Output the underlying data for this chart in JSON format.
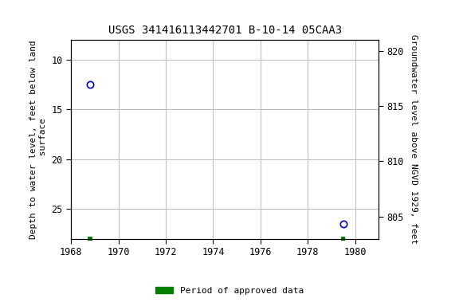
{
  "title": "USGS 341416113442701 B-10-14 05CAA3",
  "ylabel_left": "Depth to water level, feet below land\n surface",
  "ylabel_right": "Groundwater level above NGVD 1929, feet",
  "xlim": [
    1968,
    1981
  ],
  "ylim_left_top": 8,
  "ylim_left_bottom": 28,
  "ylim_right_top": 821,
  "ylim_right_bottom": 803,
  "xticks": [
    1968,
    1970,
    1972,
    1974,
    1976,
    1978,
    1980
  ],
  "yticks_left": [
    10,
    15,
    20,
    25
  ],
  "yticks_right": [
    820,
    815,
    810,
    805
  ],
  "data_points": [
    {
      "x": 1968.8,
      "y_left": 12.5
    },
    {
      "x": 1979.5,
      "y_left": 26.5
    }
  ],
  "green_marks": [
    {
      "x": 1968.8
    },
    {
      "x": 1979.5
    }
  ],
  "point_color": "#0000cc",
  "green_color": "#008000",
  "background_color": "#ffffff",
  "grid_color": "#c0c0c0",
  "legend_label": "Period of approved data",
  "title_fontsize": 10,
  "label_fontsize": 8,
  "tick_fontsize": 8.5
}
